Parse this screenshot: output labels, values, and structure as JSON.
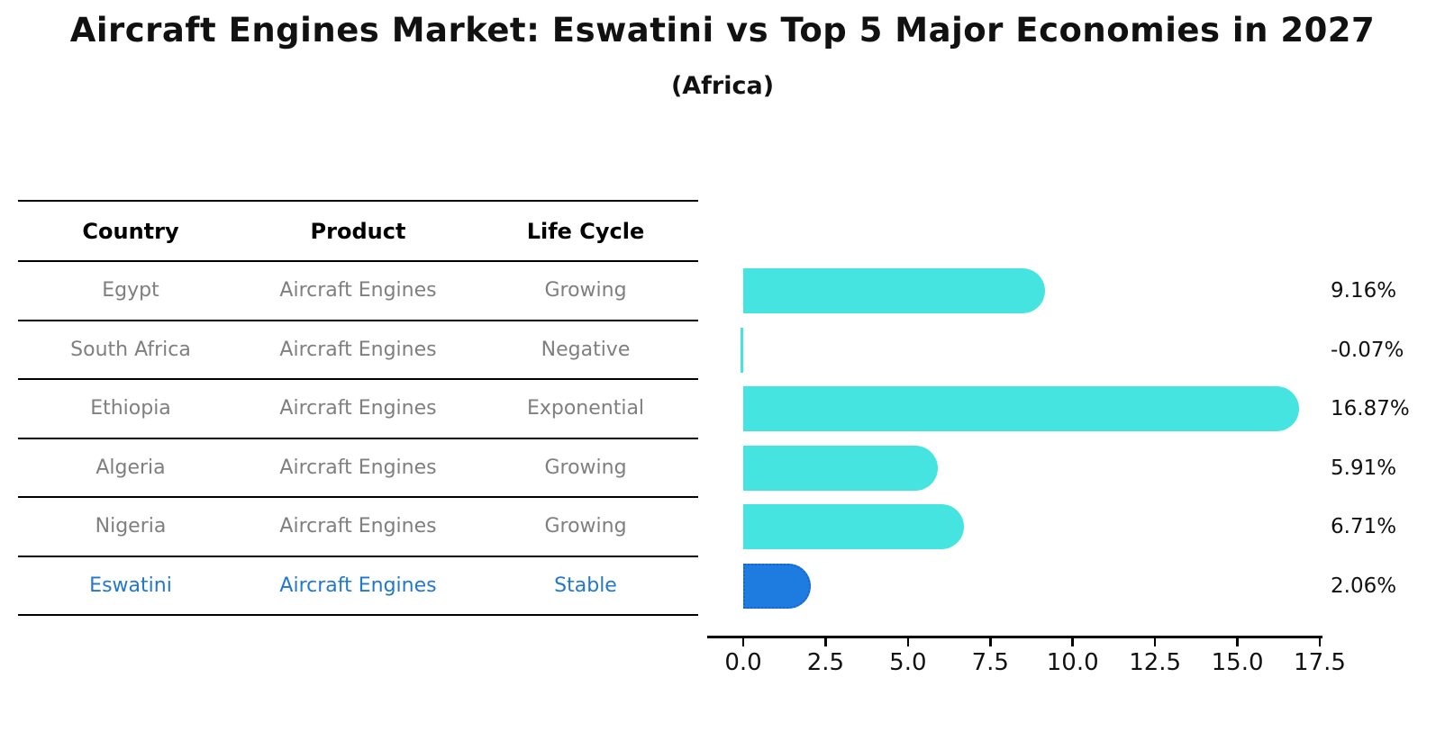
{
  "title": "Aircraft Engines Market: Eswatini vs Top 5 Major Economies in 2027",
  "subtitle": "(Africa)",
  "table": {
    "columns": [
      "Country",
      "Product",
      "Life Cycle"
    ],
    "rows": [
      {
        "country": "Egypt",
        "product": "Aircraft Engines",
        "life_cycle": "Growing",
        "highlight": false
      },
      {
        "country": "South Africa",
        "product": "Aircraft Engines",
        "life_cycle": "Negative",
        "highlight": false
      },
      {
        "country": "Ethiopia",
        "product": "Aircraft Engines",
        "life_cycle": "Exponential",
        "highlight": false
      },
      {
        "country": "Algeria",
        "product": "Aircraft Engines",
        "life_cycle": "Growing",
        "highlight": false
      },
      {
        "country": "Nigeria",
        "product": "Aircraft Engines",
        "life_cycle": "Growing",
        "highlight": false
      },
      {
        "country": "Eswatini",
        "product": "Aircraft Engines",
        "life_cycle": "Stable",
        "highlight": true
      }
    ]
  },
  "chart_data": {
    "type": "bar",
    "orientation": "horizontal",
    "title": "Aircraft Engines Market: Eswatini vs Top 5 Major Economies in 2027 (Africa)",
    "categories": [
      "Egypt",
      "South Africa",
      "Ethiopia",
      "Algeria",
      "Nigeria",
      "Eswatini"
    ],
    "values": [
      9.16,
      -0.07,
      16.87,
      5.91,
      6.71,
      2.06
    ],
    "value_labels": [
      "9.16%",
      "-0.07%",
      "16.87%",
      "5.91%",
      "6.71%",
      "2.06%"
    ],
    "highlight_index": 5,
    "xticks": [
      0,
      2.5,
      5,
      7.5,
      10,
      12.5,
      15,
      17.5
    ],
    "xtick_labels": [
      "0.0",
      "2.5",
      "5.0",
      "7.5",
      "10.0",
      "12.5",
      "15.0",
      "17.5"
    ],
    "xlim": [
      0,
      17.5
    ],
    "grid": false,
    "legend": false,
    "xlabel": "",
    "ylabel": ""
  },
  "colors": {
    "bar_default": "#46E4E0",
    "bar_highlight": "#1E7CE0",
    "bar_highlight_border": "#1565CD",
    "row_text": "#7F7F7F",
    "highlight_text": "#2277CF",
    "header_text": "#000000",
    "line": "#000000"
  }
}
